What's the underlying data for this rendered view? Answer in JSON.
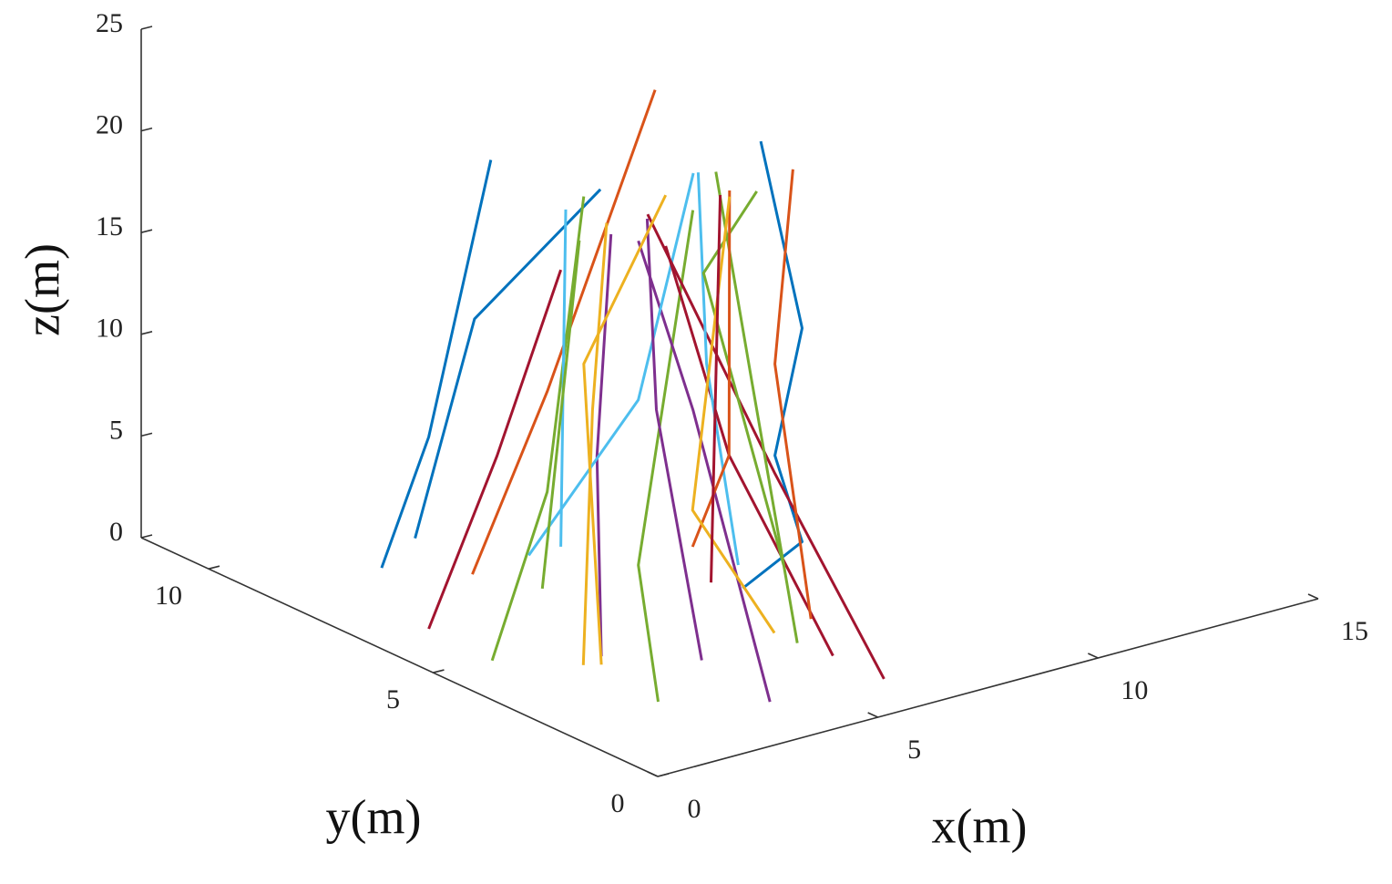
{
  "chart_data": {
    "type": "line3d",
    "xlabel": "x(m)",
    "ylabel": "y(m)",
    "zlabel": "z(m)",
    "xlim": [
      0,
      15
    ],
    "ylim": [
      0,
      11.5
    ],
    "zlim": [
      0,
      25
    ],
    "xticks": [
      0,
      5,
      10,
      15
    ],
    "yticks": [
      0,
      5,
      10
    ],
    "zticks": [
      0,
      5,
      10,
      15,
      20,
      25
    ],
    "series": [
      {
        "color": "#0072BD",
        "x": [
          1.89,
          2.96,
          4.37
        ],
        "y": [
          8,
          8,
          8
        ],
        "z": [
          0.99,
          6.8,
          19.6
        ]
      },
      {
        "color": "#0072BD",
        "x": [
          2.65,
          4.0,
          6.86
        ],
        "y": [
          8,
          8,
          8
        ],
        "z": [
          2.0,
          12.0,
          16.7
        ]
      },
      {
        "color": "#A2142F",
        "x": [
          0.92,
          2.47,
          3.92
        ],
        "y": [
          6,
          6,
          6
        ],
        "z": [
          0.6,
          8.2,
          16.5
        ]
      },
      {
        "color": "#D95319",
        "x": [
          1.91,
          3.61,
          6.06
        ],
        "y": [
          6,
          6,
          6
        ],
        "z": [
          2.7,
          10.7,
          24.1
        ]
      },
      {
        "color": "#77AC30",
        "x": [
          0.32,
          1.57,
          4.44
        ],
        "y": [
          4,
          4,
          6
        ],
        "z": [
          1.43,
          9.0,
          19.8
        ]
      },
      {
        "color": "#EDB120",
        "x": [
          2.39,
          3.62,
          4.96
        ],
        "y": [
          4,
          5,
          6
        ],
        "z": [
          0,
          10.8,
          18.2
        ]
      },
      {
        "color": "#7E2F8E",
        "x": [
          1.78,
          2.7,
          4.04
        ],
        "y": [
          3,
          4,
          5
        ],
        "z": [
          1.81,
          10.1,
          19.2
        ]
      },
      {
        "color": "#77AC30",
        "x": [
          2.05,
          2.62,
          5.9
        ],
        "y": [
          2,
          3,
          5
        ],
        "z": [
          0.44,
          5.8,
          19.3
        ]
      },
      {
        "color": "#7E2F8E",
        "x": [
          3.57,
          4.37,
          5.68
        ],
        "y": [
          1,
          3.5,
          6
        ],
        "z": [
          0.57,
          11.9,
          16.9
        ]
      },
      {
        "color": "#4DBEEE",
        "x": [
          2.17,
          4.66,
          6.93
        ],
        "y": [
          5,
          5,
          6
        ],
        "z": [
          4.5,
          10.7,
          19.5
        ]
      },
      {
        "color": "#0072BD",
        "x": [
          3.97,
          5.32,
          4.7,
          5.32,
          6.42
        ],
        "y": [
          2,
          2,
          2,
          2,
          4
        ],
        "z": [
          4.9,
          6.4,
          11.0,
          16.9,
          23.4
        ]
      },
      {
        "color": "#A2142F",
        "x": [
          6.16,
          5.72,
          4.87
        ],
        "y": [
          1,
          3,
          5
        ],
        "z": [
          0.19,
          8.5,
          19.7
        ]
      },
      {
        "color": "#A2142F",
        "x": [
          5.0,
          4.68,
          5.28
        ],
        "y": [
          1,
          3,
          5
        ],
        "z": [
          2.0,
          10.0,
          17.9
        ]
      },
      {
        "color": "#D95319",
        "x": [
          4.5,
          4.7,
          7.15
        ],
        "y": [
          1,
          2,
          4
        ],
        "z": [
          4.1,
          15.5,
          21.6
        ]
      },
      {
        "color": "#77AC30",
        "x": [
          4.19,
          5.2,
          5.4
        ],
        "y": [
          1,
          3,
          4
        ],
        "z": [
          3.1,
          13.3,
          22.5
        ]
      },
      {
        "color": "#4DBEEE",
        "x": [
          3.87,
          4.17,
          5.0
        ],
        "y": [
          2,
          3,
          4
        ],
        "z": [
          6.1,
          14.8,
          22.7
        ]
      },
      {
        "color": "#7E2F8E",
        "x": [
          3.04,
          3.03,
          3.84
        ],
        "y": [
          2,
          3,
          4
        ],
        "z": [
          1.9,
          13.2,
          21.1
        ]
      },
      {
        "color": "#EDB120",
        "x": [
          1.78,
          2.4,
          5.28
        ],
        "y": [
          3,
          4,
          5
        ],
        "z": [
          1.4,
          14.8,
          20.4
        ]
      },
      {
        "color": "#4DBEEE",
        "x": [
          2.9,
          4.03
        ],
        "y": [
          5,
          6
        ],
        "z": [
          4.5,
          19.4
        ]
      },
      {
        "color": "#77AC30",
        "x": [
          4.9,
          4.1,
          6.33
        ],
        "y": [
          2,
          3,
          4
        ],
        "z": [
          5.5,
          19.3,
          21.0
        ]
      },
      {
        "color": "#D95319",
        "x": [
          2.83,
          4.68,
          5.71
        ],
        "y": [
          2,
          3,
          4
        ],
        "z": [
          7.6,
          10.0,
          21.4
        ]
      },
      {
        "color": "#EDB120",
        "x": [
          3.67,
          2.83,
          5.71
        ],
        "y": [
          1,
          2,
          4
        ],
        "z": [
          3.9,
          9.4,
          21.1
        ]
      },
      {
        "color": "#A2142F",
        "x": [
          3.25,
          5.5
        ],
        "y": [
          2,
          4
        ],
        "z": [
          5.6,
          21.3
        ]
      },
      {
        "color": "#77AC30",
        "x": [
          1.46,
          4.34
        ],
        "y": [
          4,
          6
        ],
        "z": [
          4.3,
          17.7
        ]
      }
    ]
  }
}
